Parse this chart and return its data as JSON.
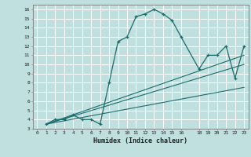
{
  "title": "",
  "xlabel": "Humidex (Indice chaleur)",
  "bg_color": "#c0e0e0",
  "grid_color": "#ffffff",
  "line_color": "#1a6b6b",
  "xlim": [
    -0.5,
    23.5
  ],
  "ylim": [
    3,
    16.5
  ],
  "xticks": [
    0,
    1,
    2,
    3,
    4,
    5,
    6,
    7,
    8,
    9,
    10,
    11,
    12,
    13,
    14,
    15,
    16,
    18,
    19,
    20,
    21,
    22,
    23
  ],
  "yticks": [
    3,
    4,
    5,
    6,
    7,
    8,
    9,
    10,
    11,
    12,
    13,
    14,
    15,
    16
  ],
  "main_curve_x": [
    1,
    2,
    3,
    4,
    5,
    6,
    7,
    8,
    9,
    10,
    11,
    12,
    13,
    14,
    15,
    16,
    18,
    19,
    20,
    21,
    22,
    23
  ],
  "main_curve_y": [
    3.5,
    4.0,
    4.0,
    4.5,
    4.0,
    4.0,
    3.5,
    8.0,
    12.5,
    13.0,
    15.2,
    15.5,
    16.0,
    15.5,
    14.8,
    13.0,
    9.5,
    11.0,
    11.0,
    12.0,
    8.5,
    12.0
  ],
  "line1_x": [
    1,
    23
  ],
  "line1_y": [
    3.5,
    11.0
  ],
  "line2_x": [
    1,
    23
  ],
  "line2_y": [
    3.5,
    10.0
  ],
  "line3_x": [
    1,
    23
  ],
  "line3_y": [
    3.5,
    7.5
  ]
}
